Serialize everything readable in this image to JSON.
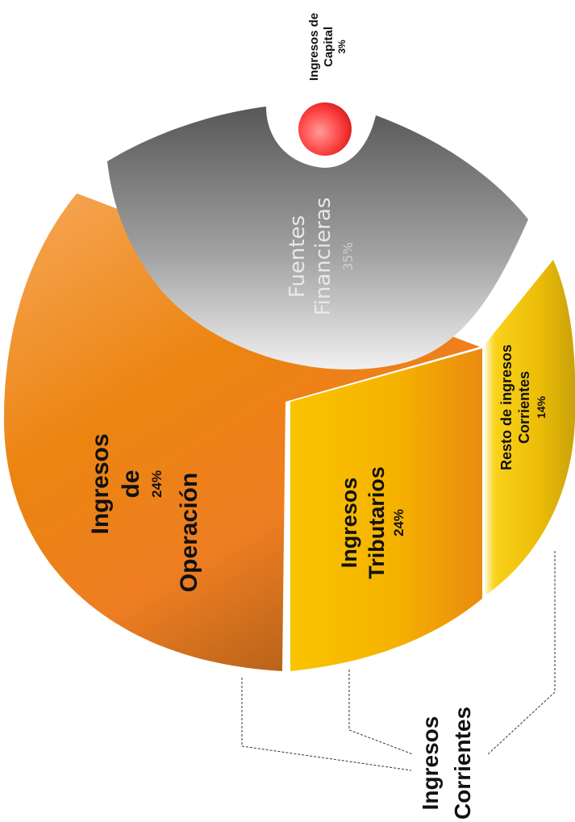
{
  "chart_data": {
    "type": "pie",
    "title": "",
    "slices": [
      {
        "name": "Ingresos de Operación",
        "lines": [
          "Ingresos",
          "de",
          "Operación"
        ],
        "pct": "24%",
        "value": 24,
        "color": "#ee8a1a"
      },
      {
        "name": "Ingresos Tributarios",
        "lines": [
          "Ingresos",
          "Tributarios"
        ],
        "pct": "24%",
        "value": 24,
        "color": "#f5b40c"
      },
      {
        "name": "Resto de ingresos Corrientes",
        "lines": [
          "Resto de ingresos",
          "Corrientes"
        ],
        "pct": "14%",
        "value": 14,
        "color": "#e9b60a"
      },
      {
        "name": "Fuentes Financieras",
        "lines": [
          "Fuentes",
          "Financieras"
        ],
        "pct": "35%",
        "value": 35,
        "color": "#8c8c8c"
      },
      {
        "name": "Ingresos de Capital",
        "lines": [
          "Ingresos de",
          "Capital"
        ],
        "pct": "3%",
        "value": 3,
        "color": "#ff4040"
      }
    ],
    "group": {
      "lines": [
        "Ingresos",
        "Corrientes"
      ]
    }
  }
}
